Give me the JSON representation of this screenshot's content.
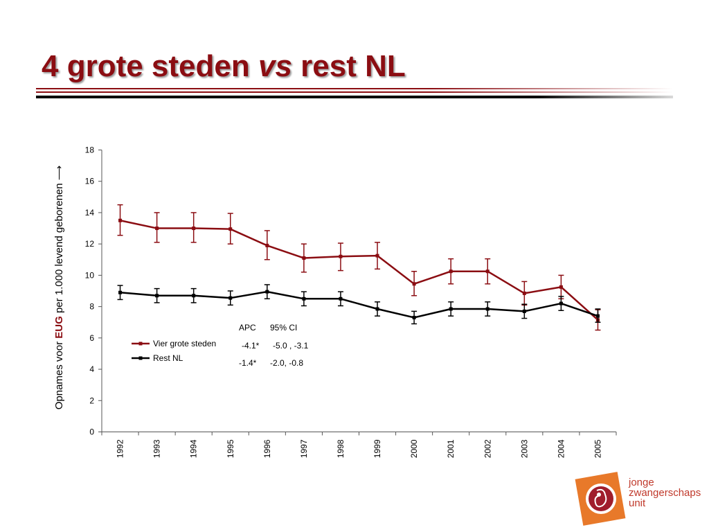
{
  "slide": {
    "title_part1": "4 grote steden ",
    "title_vs": "vs",
    "title_part2": " rest NL"
  },
  "logo": {
    "line1": "jonge",
    "line2": "zwangerschaps",
    "line3": "unit"
  },
  "stats_table": {
    "header_apc": "APC",
    "header_ci": "95% CI",
    "rows": [
      {
        "apc": "-4.1*",
        "ci": "-5.0 , -3.1"
      },
      {
        "apc": "-1.4*",
        "ci": "-2.0,  -0.8"
      }
    ]
  },
  "chart_data": {
    "type": "line",
    "ylabel_prefix": "Opnames voor ",
    "ylabel_highlight": "EUG",
    "ylabel_suffix": " per 1.000 levend geborenen",
    "ylim": [
      0,
      18
    ],
    "yticks": [
      0,
      2,
      4,
      6,
      8,
      10,
      12,
      14,
      16,
      18
    ],
    "grid": false,
    "legend_position": "left, mid-plot",
    "categories": [
      "1992",
      "1993",
      "1994",
      "1995",
      "1996",
      "1997",
      "1998",
      "1999",
      "2000",
      "2001",
      "2002",
      "2003",
      "2004",
      "2005"
    ],
    "series": [
      {
        "name": "Vier grote steden",
        "color": "#8b0d12",
        "values": [
          13.5,
          13.0,
          13.0,
          12.95,
          11.9,
          11.1,
          11.2,
          11.25,
          9.45,
          10.25,
          10.25,
          8.85,
          9.25,
          7.15
        ],
        "ci_low": [
          12.55,
          12.1,
          12.1,
          12.0,
          11.0,
          10.2,
          10.3,
          10.4,
          8.7,
          9.45,
          9.45,
          8.1,
          8.5,
          6.5
        ],
        "ci_high": [
          14.5,
          14.0,
          14.0,
          13.95,
          12.85,
          12.0,
          12.05,
          12.1,
          10.25,
          11.05,
          11.05,
          9.6,
          10.0,
          7.8
        ]
      },
      {
        "name": "Rest NL",
        "color": "#000000",
        "values": [
          8.9,
          8.7,
          8.7,
          8.55,
          8.95,
          8.5,
          8.5,
          7.85,
          7.3,
          7.85,
          7.85,
          7.7,
          8.2,
          7.4
        ],
        "ci_low": [
          8.45,
          8.25,
          8.25,
          8.1,
          8.5,
          8.05,
          8.05,
          7.4,
          6.9,
          7.4,
          7.4,
          7.25,
          7.75,
          7.0
        ],
        "ci_high": [
          9.35,
          9.15,
          9.15,
          9.0,
          9.4,
          8.95,
          8.95,
          8.3,
          7.7,
          8.3,
          8.3,
          8.15,
          8.65,
          7.85
        ]
      }
    ]
  }
}
